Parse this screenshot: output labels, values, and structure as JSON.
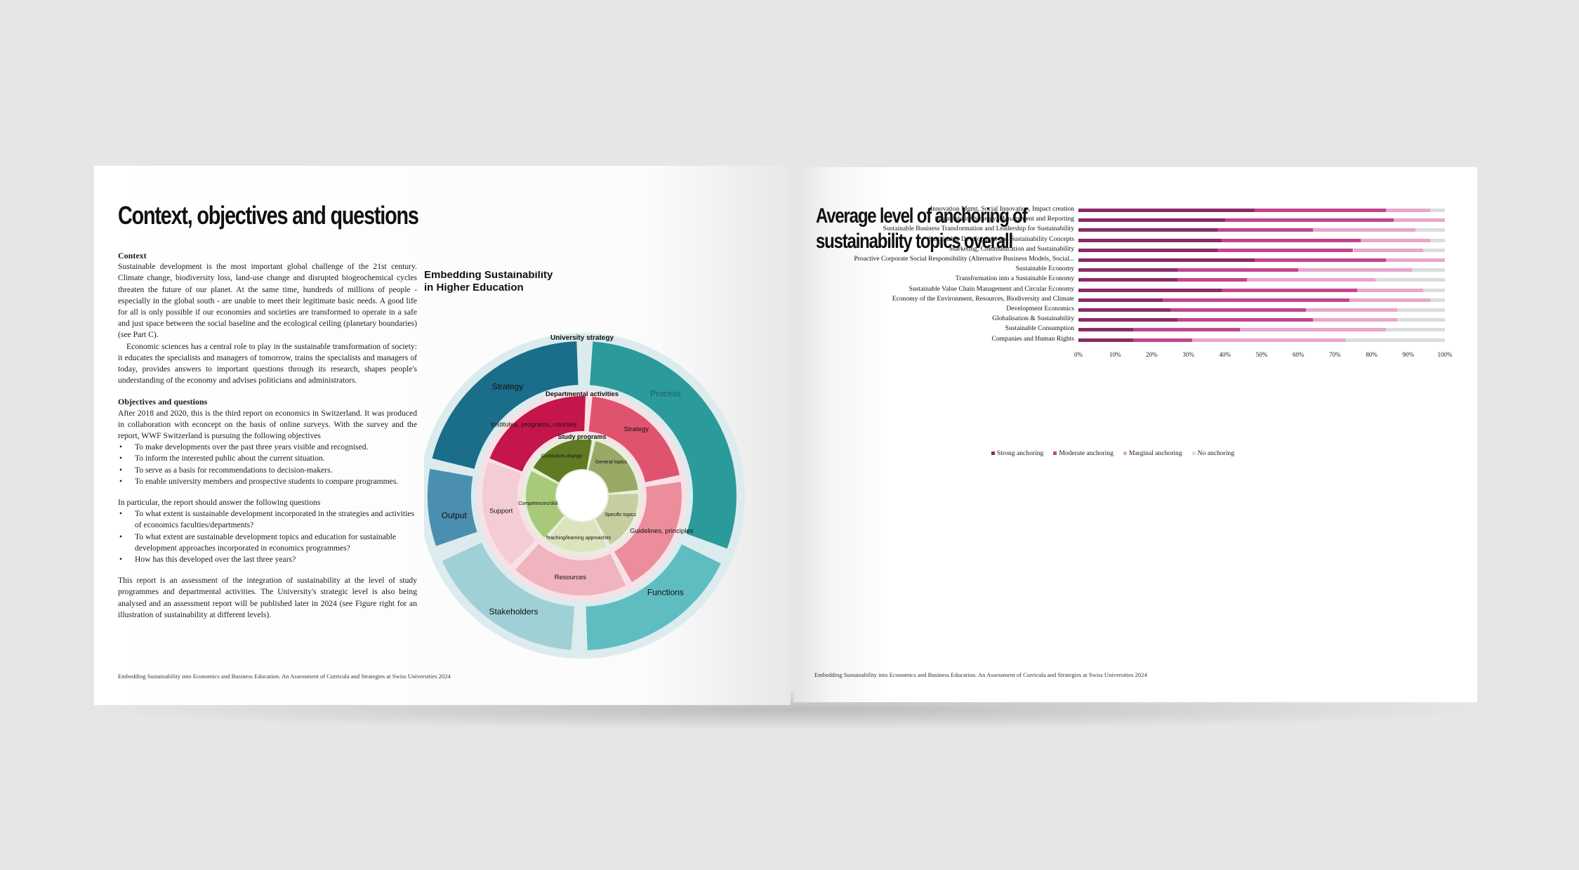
{
  "left": {
    "title": "Context, objectives and questions",
    "context_heading": "Context",
    "context_p1": "Sustainable development is the most important global challenge of the 21st century. Climate change, biodiversity loss, land-use change and disrupted biogeochemical cycles threaten the future of our planet. At the same time, hundreds of millions of people - especially in the global south - are unable to meet their legitimate basic needs. A good life for all is only possible if our economies and societies are transformed to operate in a safe and just space between the social baseline and the ecological ceiling (planetary boundaries) (see Part C).",
    "context_p2": "Economic sciences has a central role to play in the sustainable transformation of society: it educates the specialists and managers of tomorrow, trains the specialists and managers of today, provides answers to important questions through its research, shapes people's understanding of the economy and advises politicians and administrators.",
    "objectives_heading": "Objectives and questions",
    "objectives_p1": "After 2018 and 2020, this is the third report on economics in Switzerland. It was produced in collaboration with econcept on the basis of online surveys. With the survey and the report, WWF Switzerland is pursuing the following objectives",
    "objectives_list": [
      "To make developments over the past three years visible and recognised.",
      "To inform the interested public about the current situation.",
      "To serve as a basis for recommendations to decision-makers.",
      "To enable university members and prospective students to compare programmes."
    ],
    "questions_intro": "In particular, the report should answer the following questions",
    "questions_list": [
      "To what extent is sustainable development incorporated in the strategies and activities of economics faculties/departments?",
      "To what extent are sustainable development topics and education for sustainable development approaches incorporated in economics programmes?",
      "How has this developed over the last three years?"
    ],
    "closing_p": "This report is an assessment of the integration of sustainability at the level of study programmes and departmental activities. The University's strategic level is also being analysed and an assessment report will be published later in 2024 (see Figure right for an illustration of sustainability at different levels).",
    "footer": "Embedding Sustainability into Economics and Business Education. An Assessment of Curricula and Strategies at Swiss Universities 2024"
  },
  "diagram": {
    "title_line1": "Embedding Sustainability",
    "title_line2": "in Higher Education",
    "outer_label": "University strategy",
    "outer_segments": [
      "Strategy",
      "Process",
      "Functions",
      "Stakeholders",
      "Output"
    ],
    "middle_label": "Departmental activities",
    "middle_segments": [
      "Institutes, programs, courses",
      "Strategy",
      "Guidelines, principles",
      "Resources",
      "Support"
    ],
    "inner_label": "Study programs",
    "inner_segments": [
      "Curriculum change",
      "General topics",
      "Specific topics",
      "Teaching/learning approaches",
      "Competences/skills"
    ],
    "colors": {
      "outer": [
        "#1a6e8a",
        "#2a9a9a",
        "#5fbdc2",
        "#9fd0d6",
        "#4a8fb0"
      ],
      "middle": [
        "#c4164a",
        "#e0536f",
        "#ec8d9b",
        "#efb4bd",
        "#f3cdd3"
      ],
      "inner": [
        "#5f7a22",
        "#9aa866",
        "#c6cd9f",
        "#dbe4bd",
        "#a8c97a"
      ]
    }
  },
  "right": {
    "title_line1": "Average level of anchoring of",
    "title_line2": "sustainability topics overall",
    "footer": "Embedding Sustainability into Economics and Business Education. An Assessment of Curricula and Strategies at Swiss Universities 2024"
  },
  "chart_data": {
    "type": "bar",
    "orientation": "horizontal",
    "stacked": true,
    "categories": [
      "Innovation Mgmt, Social Innovation, Impact creation",
      "Sustainability Strategy, Management and Reporting",
      "Sustainable Business Transformation and Leadership for Sustainability",
      "Sustainable Development and Sustainability Concepts",
      "Marketing, Communication and Sustainability",
      "Proactive Corporate Social Responsibility (Alternative Business Models, Social...",
      "Sustainable Economy",
      "Transformation into a Sustainable Economy",
      "Sustainable Value Chain Management and Circular Economy",
      "Economy of the Environment, Resources, Biodiversity and Climate",
      "Development Economics",
      "Globalisation & Sustainability",
      "Sustainable Consumption",
      "Companies and Human Rights"
    ],
    "series": [
      {
        "name": "Strong anchoring",
        "color": "#8a2a66",
        "values": [
          48,
          40,
          38,
          39,
          38,
          48,
          27,
          27,
          39,
          23,
          25,
          27,
          15,
          15
        ]
      },
      {
        "name": "Moderate anchoring",
        "color": "#c4438e",
        "values": [
          36,
          46,
          26,
          38,
          37,
          36,
          33,
          19,
          37,
          51,
          37,
          37,
          29,
          16
        ]
      },
      {
        "name": "Marginal anchoring",
        "color": "#e8a6cb",
        "values": [
          12,
          14,
          28,
          19,
          19,
          16,
          31,
          35,
          18,
          22,
          25,
          23,
          40,
          42
        ]
      },
      {
        "name": "No anchoring",
        "color": "#dcdcdc",
        "values": [
          4,
          0,
          8,
          4,
          6,
          0,
          9,
          19,
          6,
          4,
          13,
          13,
          16,
          27
        ]
      }
    ],
    "xlim": [
      0,
      100
    ],
    "xticks": [
      "0%",
      "10%",
      "20%",
      "30%",
      "40%",
      "50%",
      "60%",
      "70%",
      "80%",
      "90%",
      "100%"
    ],
    "legend": "bottom"
  }
}
